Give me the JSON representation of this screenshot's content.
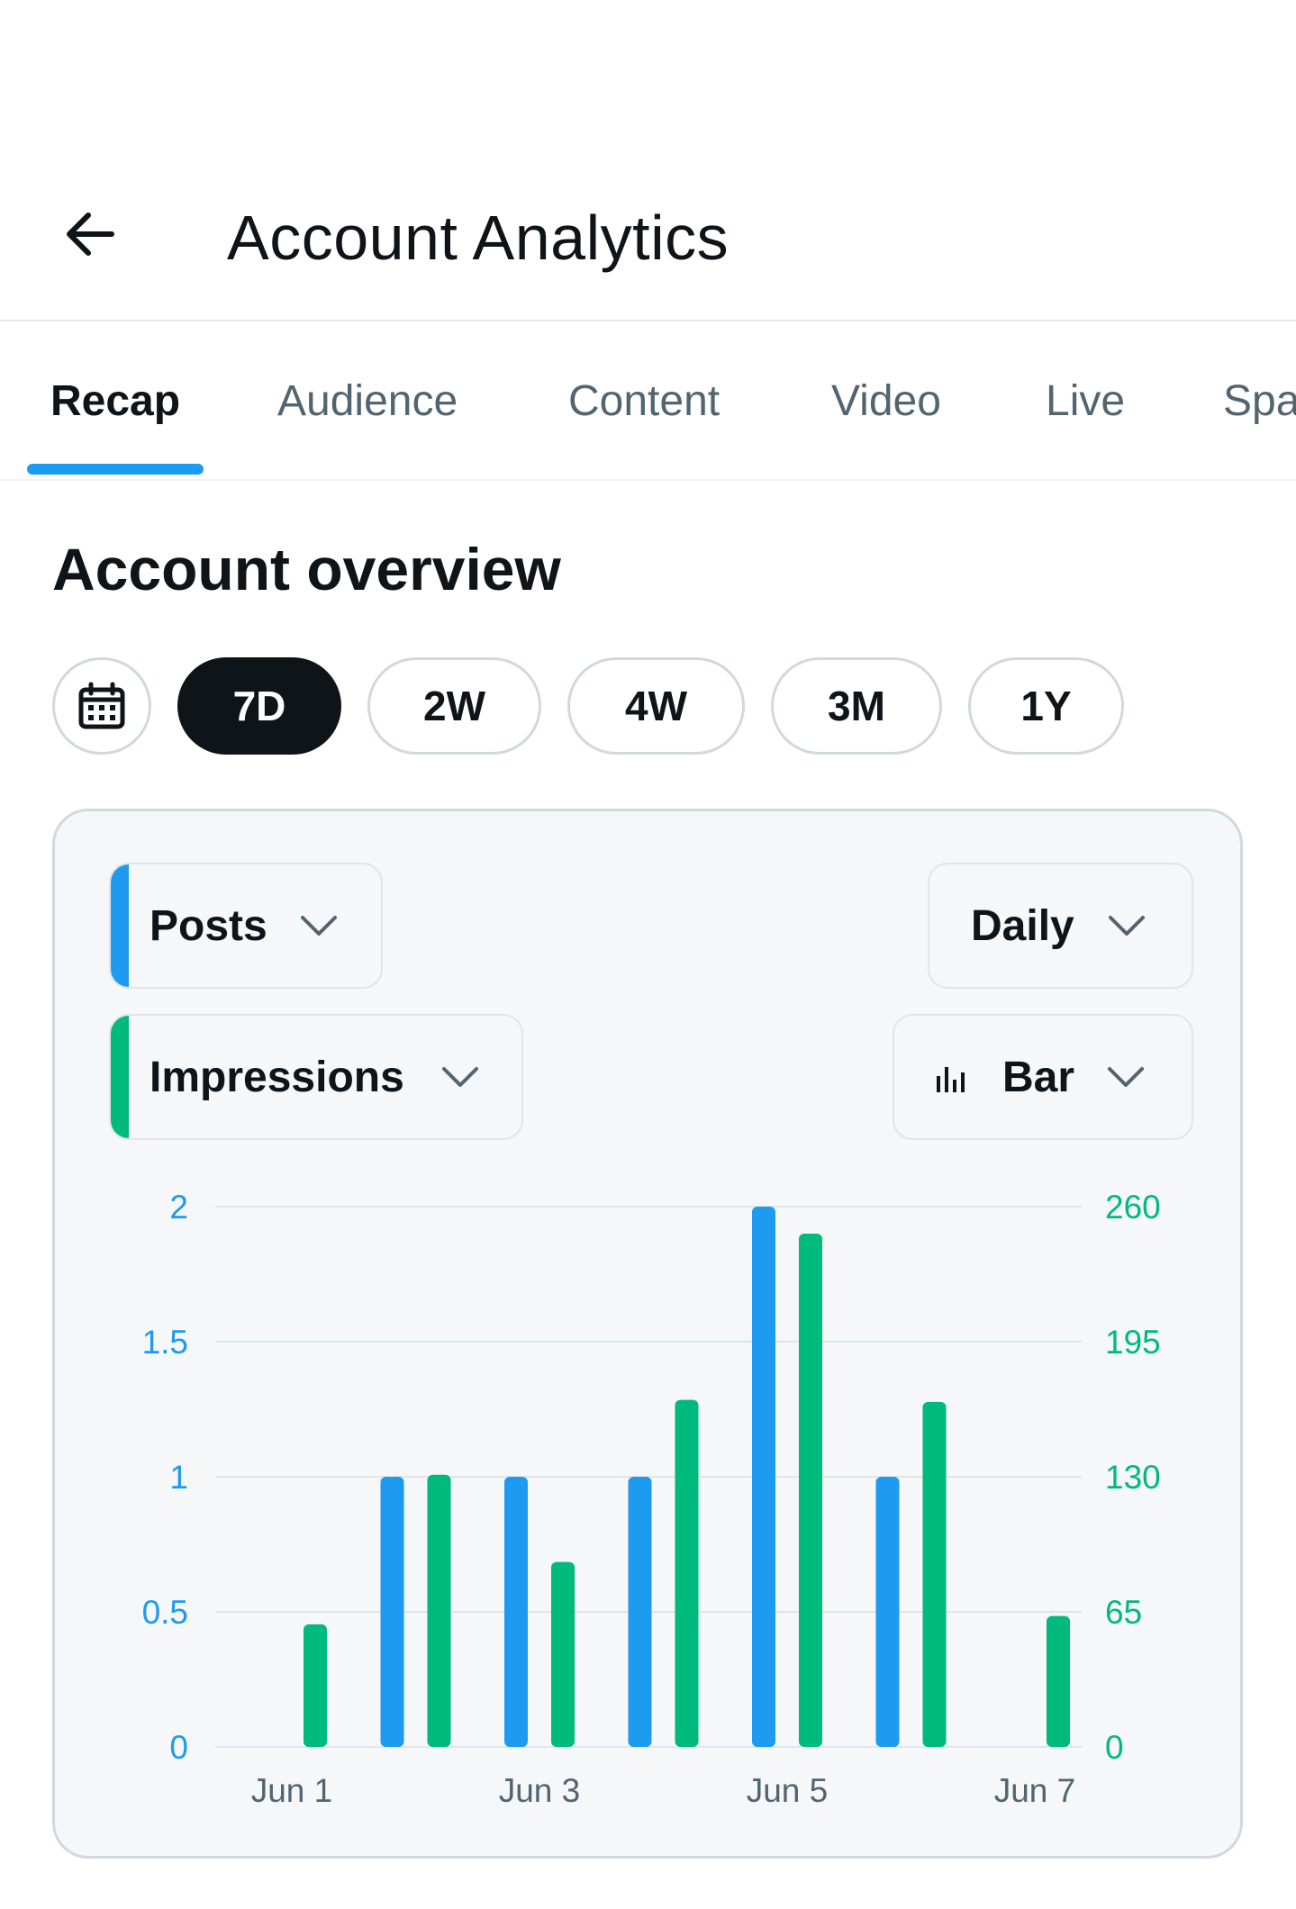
{
  "header": {
    "title": "Account Analytics",
    "back_icon": "arrow-left-icon"
  },
  "tabs": [
    {
      "label": "Recap",
      "active": true
    },
    {
      "label": "Audience",
      "active": false
    },
    {
      "label": "Content",
      "active": false
    },
    {
      "label": "Video",
      "active": false
    },
    {
      "label": "Live",
      "active": false
    },
    {
      "label": "Spa",
      "active": false
    }
  ],
  "overview": {
    "title": "Account overview",
    "calendar_icon": "calendar-icon",
    "ranges": [
      {
        "label": "7D",
        "active": true
      },
      {
        "label": "2W",
        "active": false
      },
      {
        "label": "4W",
        "active": false
      },
      {
        "label": "3M",
        "active": false
      },
      {
        "label": "1Y",
        "active": false
      }
    ]
  },
  "controls": {
    "metric1": {
      "label": "Posts",
      "color": "#1d9bf0"
    },
    "metric2": {
      "label": "Impressions",
      "color": "#00ba7c"
    },
    "granularity": {
      "label": "Daily"
    },
    "chart_type": {
      "label": "Bar",
      "icon": "bar-chart-icon"
    }
  },
  "chart_data": {
    "type": "bar",
    "categories": [
      "Jun 1",
      "Jun 2",
      "Jun 3",
      "Jun 4",
      "Jun 5",
      "Jun 6",
      "Jun 7"
    ],
    "x_tick_labels": [
      "Jun 1",
      "Jun 3",
      "Jun 5",
      "Jun 7"
    ],
    "series": [
      {
        "name": "Posts",
        "axis": "left",
        "color": "#1d9bf0",
        "values": [
          0,
          1,
          1,
          1,
          2,
          1,
          0
        ]
      },
      {
        "name": "Impressions",
        "axis": "right",
        "color": "#00ba7c",
        "values": [
          59,
          131,
          89,
          167,
          247,
          166,
          63
        ]
      }
    ],
    "y_left": {
      "ticks": [
        "0",
        "0.5",
        "1",
        "1.5",
        "2"
      ],
      "range": [
        0,
        2
      ],
      "color": "#1d9bf0"
    },
    "y_right": {
      "ticks": [
        "0",
        "65",
        "130",
        "195",
        "260"
      ],
      "range": [
        0,
        260
      ],
      "color": "#00ba7c"
    },
    "grid": true
  }
}
